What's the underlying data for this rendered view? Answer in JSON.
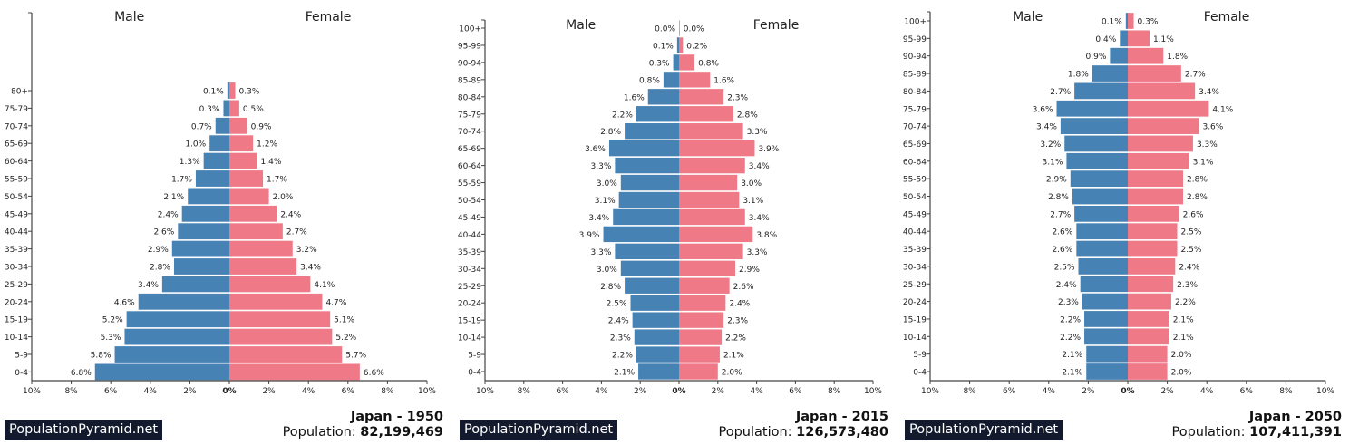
{
  "brand": "PopulationPyramid.net",
  "colors": {
    "male": "#4682b4",
    "female": "#ef7987",
    "axis": "#444444"
  },
  "chart_data": [
    {
      "type": "bar",
      "orientation": "horizontal-pyramid",
      "title": "Japan - 1950",
      "population_label": "Population:",
      "population": "82,199,469",
      "left_label": "Male",
      "right_label": "Female",
      "xlim": [
        -10,
        10
      ],
      "x_tick_labels": [
        "10%",
        "8%",
        "6%",
        "4%",
        "2%",
        "0%",
        "2%",
        "4%",
        "6%",
        "8%",
        "10%"
      ],
      "categories": [
        "0-4",
        "5-9",
        "10-14",
        "15-19",
        "20-24",
        "25-29",
        "30-34",
        "35-39",
        "40-44",
        "45-49",
        "50-54",
        "55-59",
        "60-64",
        "65-69",
        "70-74",
        "75-79",
        "80+"
      ],
      "series": [
        {
          "name": "Male",
          "values": [
            6.8,
            5.8,
            5.3,
            5.2,
            4.6,
            3.4,
            2.8,
            2.9,
            2.6,
            2.4,
            2.1,
            1.7,
            1.3,
            1.0,
            0.7,
            0.3,
            0.1
          ]
        },
        {
          "name": "Female",
          "values": [
            6.6,
            5.7,
            5.2,
            5.1,
            4.7,
            4.1,
            3.4,
            3.2,
            2.7,
            2.4,
            2.0,
            1.7,
            1.4,
            1.2,
            0.9,
            0.5,
            0.3
          ]
        }
      ]
    },
    {
      "type": "bar",
      "orientation": "horizontal-pyramid",
      "title": "Japan - 2015",
      "population_label": "Population:",
      "population": "126,573,480",
      "left_label": "Male",
      "right_label": "Female",
      "xlim": [
        -10,
        10
      ],
      "x_tick_labels": [
        "10%",
        "8%",
        "6%",
        "4%",
        "2%",
        "0%",
        "2%",
        "4%",
        "6%",
        "8%",
        "10%"
      ],
      "categories": [
        "0-4",
        "5-9",
        "10-14",
        "15-19",
        "20-24",
        "25-29",
        "30-34",
        "35-39",
        "40-44",
        "45-49",
        "50-54",
        "55-59",
        "60-64",
        "65-69",
        "70-74",
        "75-79",
        "80-84",
        "85-89",
        "90-94",
        "95-99",
        "100+"
      ],
      "series": [
        {
          "name": "Male",
          "values": [
            2.1,
            2.2,
            2.3,
            2.4,
            2.5,
            2.8,
            3.0,
            3.3,
            3.9,
            3.4,
            3.1,
            3.0,
            3.3,
            3.6,
            2.8,
            2.2,
            1.6,
            0.8,
            0.3,
            0.1,
            0.0
          ]
        },
        {
          "name": "Female",
          "values": [
            2.0,
            2.1,
            2.2,
            2.3,
            2.4,
            2.6,
            2.9,
            3.3,
            3.8,
            3.4,
            3.1,
            3.0,
            3.4,
            3.9,
            3.3,
            2.8,
            2.3,
            1.6,
            0.8,
            0.2,
            0.0
          ]
        }
      ]
    },
    {
      "type": "bar",
      "orientation": "horizontal-pyramid",
      "title": "Japan - 2050",
      "population_label": "Population:",
      "population": "107,411,391",
      "left_label": "Male",
      "right_label": "Female",
      "xlim": [
        -10,
        10
      ],
      "x_tick_labels": [
        "10%",
        "8%",
        "6%",
        "4%",
        "2%",
        "0%",
        "2%",
        "4%",
        "6%",
        "8%",
        "10%"
      ],
      "categories": [
        "0-4",
        "5-9",
        "10-14",
        "15-19",
        "20-24",
        "25-29",
        "30-34",
        "35-39",
        "40-44",
        "45-49",
        "50-54",
        "55-59",
        "60-64",
        "65-69",
        "70-74",
        "75-79",
        "80-84",
        "85-89",
        "90-94",
        "95-99",
        "100+"
      ],
      "series": [
        {
          "name": "Male",
          "values": [
            2.1,
            2.1,
            2.2,
            2.2,
            2.3,
            2.4,
            2.5,
            2.6,
            2.6,
            2.7,
            2.8,
            2.9,
            3.1,
            3.2,
            3.4,
            3.6,
            2.7,
            1.8,
            0.9,
            0.4,
            0.1
          ]
        },
        {
          "name": "Female",
          "values": [
            2.0,
            2.0,
            2.1,
            2.1,
            2.2,
            2.3,
            2.4,
            2.5,
            2.5,
            2.6,
            2.8,
            2.8,
            3.1,
            3.3,
            3.6,
            4.1,
            3.4,
            2.7,
            1.8,
            1.1,
            0.3
          ]
        }
      ]
    }
  ]
}
